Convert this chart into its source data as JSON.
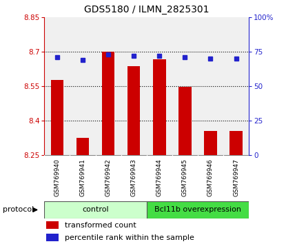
{
  "title": "GDS5180 / ILMN_2825301",
  "samples": [
    "GSM769940",
    "GSM769941",
    "GSM769942",
    "GSM769943",
    "GSM769944",
    "GSM769945",
    "GSM769946",
    "GSM769947"
  ],
  "bar_values": [
    8.575,
    8.325,
    8.7,
    8.635,
    8.665,
    8.545,
    8.355,
    8.355
  ],
  "percentile_values": [
    71,
    69,
    73,
    72,
    72,
    71,
    70,
    70
  ],
  "bar_bottom": 8.25,
  "ylim_left": [
    8.25,
    8.85
  ],
  "ylim_right": [
    0,
    100
  ],
  "yticks_left": [
    8.25,
    8.4,
    8.55,
    8.7,
    8.85
  ],
  "yticks_right": [
    0,
    25,
    50,
    75,
    100
  ],
  "ytick_labels_left": [
    "8.25",
    "8.4",
    "8.55",
    "8.7",
    "8.85"
  ],
  "ytick_labels_right": [
    "0",
    "25",
    "50",
    "75",
    "100%"
  ],
  "hlines": [
    8.4,
    8.55,
    8.7
  ],
  "bar_color": "#cc0000",
  "dot_color": "#2222cc",
  "group_control_color": "#ccffcc",
  "group_overexp_color": "#44dd44",
  "group_control_label": "control",
  "group_overexp_label": "Bcl11b overexpression",
  "protocol_label": "protocol",
  "legend_bar_label": "transformed count",
  "legend_dot_label": "percentile rank within the sample",
  "bar_width": 0.5,
  "plot_bg": "#f0f0f0",
  "label_area_bg": "#cccccc",
  "title_fontsize": 10,
  "tick_fontsize": 7.5,
  "axis_color_left": "#cc0000",
  "axis_color_right": "#2222cc",
  "n_control": 4,
  "n_overexp": 4
}
